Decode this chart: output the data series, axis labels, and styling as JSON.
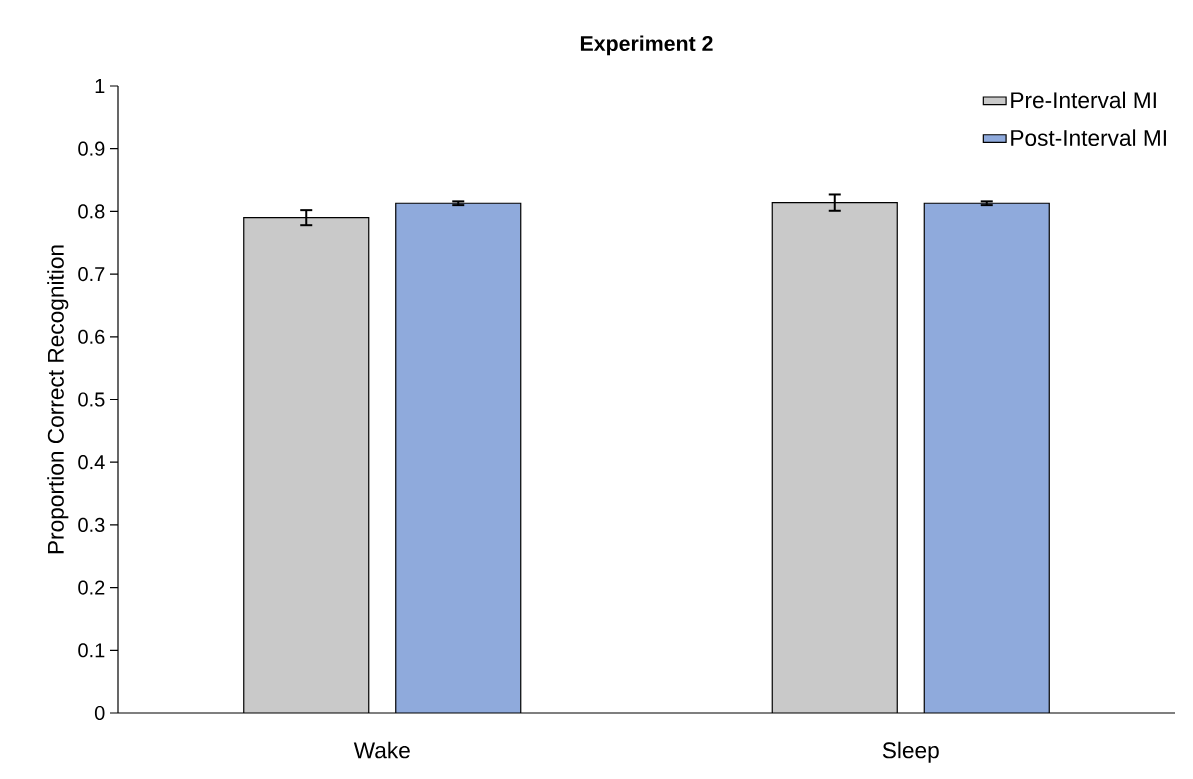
{
  "chart_data": {
    "type": "bar",
    "title": "Experiment 2",
    "ylabel": "Proportion Correct Recognition",
    "categories": [
      "Wake",
      "Sleep"
    ],
    "series": [
      {
        "name": "Pre-Interval MI",
        "color": "#c9c9c9",
        "values": [
          0.79,
          0.814
        ],
        "errors": [
          0.012,
          0.013
        ]
      },
      {
        "name": "Post-Interval MI",
        "color": "#8faadc",
        "values": [
          0.813,
          0.813
        ],
        "errors": [
          0.003,
          0.003
        ]
      }
    ],
    "ylim": [
      0,
      1
    ],
    "yticks": [
      0,
      0.1,
      0.2,
      0.3,
      0.4,
      0.5,
      0.6,
      0.7,
      0.8,
      0.9,
      1
    ],
    "grid": false,
    "legend": "top right"
  }
}
